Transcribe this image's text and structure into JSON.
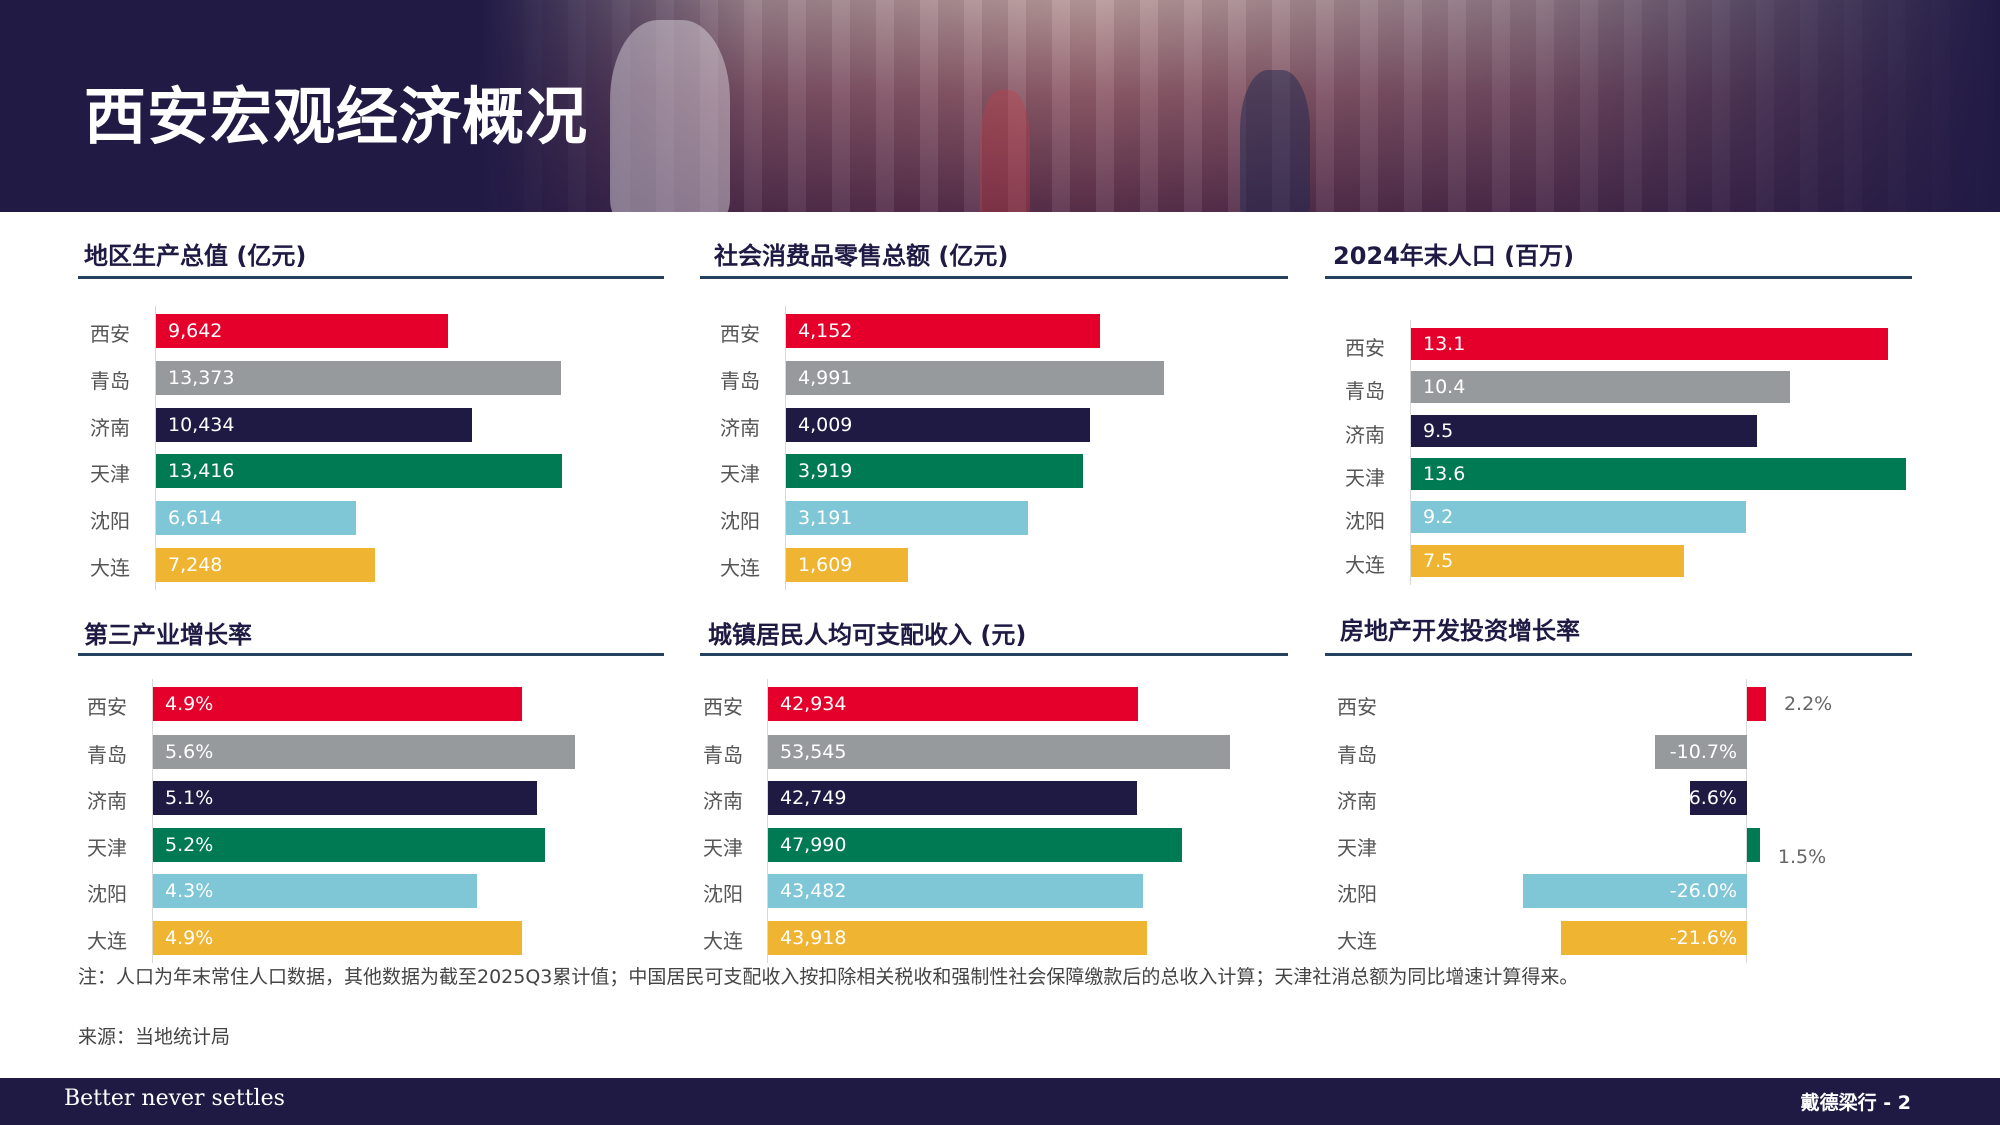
{
  "header": {
    "title": "西安宏观经济概况"
  },
  "colors": {
    "西安": "#e4002b",
    "青岛": "#969a9c",
    "济南": "#1f1a44",
    "天津": "#007a53",
    "沈阳": "#7fc6d6",
    "大连": "#f0b433"
  },
  "chart_data": [
    {
      "id": "gdp",
      "type": "bar",
      "orientation": "horizontal",
      "title": "地区生产总值 (亿元)",
      "categories": [
        "西安",
        "青岛",
        "济南",
        "天津",
        "沈阳",
        "大连"
      ],
      "values": [
        9642,
        13373,
        10434,
        13416,
        6614,
        7248
      ],
      "labels": [
        "9,642",
        "13,373",
        "10,434",
        "13,416",
        "6,614",
        "7,248"
      ]
    },
    {
      "id": "retail",
      "type": "bar",
      "orientation": "horizontal",
      "title": "社会消费品零售总额 (亿元)",
      "categories": [
        "西安",
        "青岛",
        "济南",
        "天津",
        "沈阳",
        "大连"
      ],
      "values": [
        4152,
        4991,
        4009,
        3919,
        3191,
        1609
      ],
      "labels": [
        "4,152",
        "4,991",
        "4,009",
        "3,919",
        "3,191",
        "1,609"
      ]
    },
    {
      "id": "population",
      "type": "bar",
      "orientation": "horizontal",
      "title": "2024年末人口 (百万)",
      "categories": [
        "西安",
        "青岛",
        "济南",
        "天津",
        "沈阳",
        "大连"
      ],
      "values": [
        13.1,
        10.4,
        9.5,
        13.6,
        9.2,
        7.5
      ],
      "labels": [
        "13.1",
        "10.4",
        "9.5",
        "13.6",
        "9.2",
        "7.5"
      ]
    },
    {
      "id": "tertiary",
      "type": "bar",
      "orientation": "horizontal",
      "title": "第三产业增长率",
      "categories": [
        "西安",
        "青岛",
        "济南",
        "天津",
        "沈阳",
        "大连"
      ],
      "values": [
        4.9,
        5.6,
        5.1,
        5.2,
        4.3,
        4.9
      ],
      "labels": [
        "4.9%",
        "5.6%",
        "5.1%",
        "5.2%",
        "4.3%",
        "4.9%"
      ]
    },
    {
      "id": "income",
      "type": "bar",
      "orientation": "horizontal",
      "title": "城镇居民人均可支配收入 (元)",
      "categories": [
        "西安",
        "青岛",
        "济南",
        "天津",
        "沈阳",
        "大连"
      ],
      "values": [
        42934,
        53545,
        42749,
        47990,
        43482,
        43918
      ],
      "labels": [
        "42,934",
        "53,545",
        "42,749",
        "47,990",
        "43,482",
        "43,918"
      ]
    },
    {
      "id": "realestate",
      "type": "bar",
      "orientation": "horizontal",
      "title": "房地产开发投资增长率",
      "categories": [
        "西安",
        "青岛",
        "济南",
        "天津",
        "沈阳",
        "大连"
      ],
      "values": [
        2.2,
        -10.7,
        -6.6,
        1.5,
        -26.0,
        -21.6
      ],
      "labels": [
        "2.2%",
        "-10.7%",
        "-6.6%",
        "1.5%",
        "-26.0%",
        "-21.6%"
      ]
    }
  ],
  "note": "注：人口为年末常住人口数据，其他数据为截至2025Q3累计值；中国居民可支配收入按扣除相关税收和强制性社会保障缴款后的总收入计算；天津社消总额为同比增速计算得来。",
  "source": "来源：当地统计局",
  "footer": {
    "tagline": "Better never settles",
    "page": "戴德梁行 - 2"
  }
}
